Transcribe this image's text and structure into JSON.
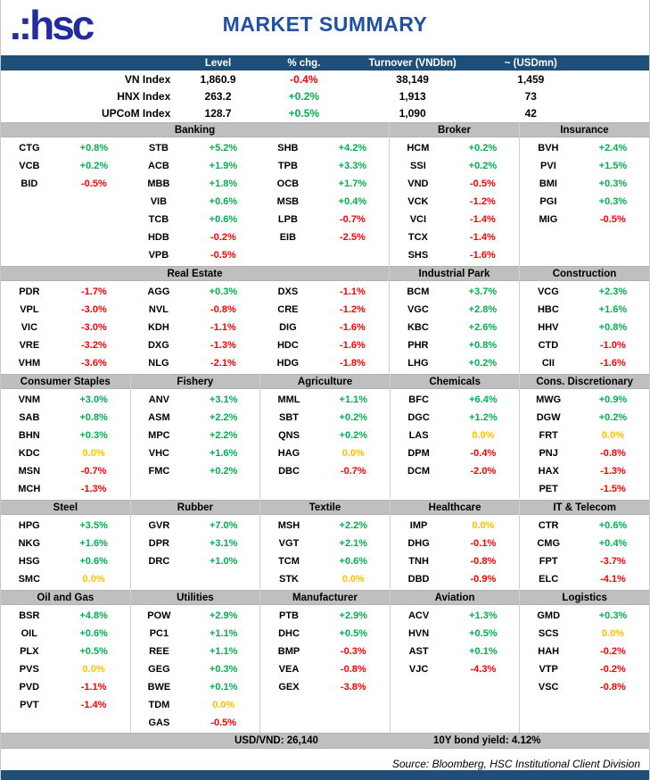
{
  "header": {
    "logo_text": ".:hsc",
    "title": "MARKET SUMMARY"
  },
  "index_table": {
    "columns": {
      "level": "Level",
      "chg": "% chg.",
      "turnover": "Turnover (VNDbn)",
      "usd": "~ (USDmn)"
    },
    "rows": [
      {
        "name": "VN Index",
        "level": "1,860.9",
        "chg": "-0.4%",
        "turnover": "38,149",
        "usd": "1,459"
      },
      {
        "name": "HNX Index",
        "level": "263.2",
        "chg": "+0.2%",
        "turnover": "1,913",
        "usd": "73"
      },
      {
        "name": "UPCoM Index",
        "level": "128.7",
        "chg": "+0.5%",
        "turnover": "1,090",
        "usd": "42"
      }
    ]
  },
  "section_rows": [
    {
      "sections": [
        {
          "title": "Banking",
          "span": 3,
          "columns": [
            [
              [
                "CTG",
                "+0.8%"
              ],
              [
                "VCB",
                "+0.2%"
              ],
              [
                "BID",
                "-0.5%"
              ]
            ],
            [
              [
                "STB",
                "+5.2%"
              ],
              [
                "ACB",
                "+1.9%"
              ],
              [
                "MBB",
                "+1.8%"
              ],
              [
                "VIB",
                "+0.6%"
              ],
              [
                "TCB",
                "+0.6%"
              ],
              [
                "HDB",
                "-0.2%"
              ],
              [
                "VPB",
                "-0.5%"
              ]
            ],
            [
              [
                "SHB",
                "+4.2%"
              ],
              [
                "TPB",
                "+3.3%"
              ],
              [
                "OCB",
                "+1.7%"
              ],
              [
                "MSB",
                "+0.4%"
              ],
              [
                "LPB",
                "-0.7%"
              ],
              [
                "EIB",
                "-2.5%"
              ]
            ]
          ]
        },
        {
          "title": "Broker",
          "span": 1,
          "columns": [
            [
              [
                "HCM",
                "+0.2%"
              ],
              [
                "SSI",
                "+0.2%"
              ],
              [
                "VND",
                "-0.5%"
              ],
              [
                "VCK",
                "-1.2%"
              ],
              [
                "VCI",
                "-1.4%"
              ],
              [
                "TCX",
                "-1.4%"
              ],
              [
                "SHS",
                "-1.6%"
              ]
            ]
          ]
        },
        {
          "title": "Insurance",
          "span": 1,
          "columns": [
            [
              [
                "BVH",
                "+2.4%"
              ],
              [
                "PVI",
                "+1.5%"
              ],
              [
                "BMI",
                "+0.3%"
              ],
              [
                "PGI",
                "+0.3%"
              ],
              [
                "MIG",
                "-0.5%"
              ]
            ]
          ]
        }
      ]
    },
    {
      "sections": [
        {
          "title": "Real Estate",
          "span": 3,
          "columns": [
            [
              [
                "PDR",
                "-1.7%"
              ],
              [
                "VPL",
                "-3.0%"
              ],
              [
                "VIC",
                "-3.0%"
              ],
              [
                "VRE",
                "-3.2%"
              ],
              [
                "VHM",
                "-3.6%"
              ]
            ],
            [
              [
                "AGG",
                "+0.3%"
              ],
              [
                "NVL",
                "-0.8%"
              ],
              [
                "KDH",
                "-1.1%"
              ],
              [
                "DXG",
                "-1.3%"
              ],
              [
                "NLG",
                "-2.1%"
              ]
            ],
            [
              [
                "DXS",
                "-1.1%"
              ],
              [
                "CRE",
                "-1.2%"
              ],
              [
                "DIG",
                "-1.6%"
              ],
              [
                "HDC",
                "-1.6%"
              ],
              [
                "HDG",
                "-1.8%"
              ]
            ]
          ]
        },
        {
          "title": "Industrial Park",
          "span": 1,
          "columns": [
            [
              [
                "BCM",
                "+3.7%"
              ],
              [
                "VGC",
                "+2.8%"
              ],
              [
                "KBC",
                "+2.6%"
              ],
              [
                "PHR",
                "+0.8%"
              ],
              [
                "LHG",
                "+0.2%"
              ]
            ]
          ]
        },
        {
          "title": "Construction",
          "span": 1,
          "columns": [
            [
              [
                "VCG",
                "+2.3%"
              ],
              [
                "HBC",
                "+1.6%"
              ],
              [
                "HHV",
                "+0.8%"
              ],
              [
                "CTD",
                "-1.0%"
              ],
              [
                "CII",
                "-1.6%"
              ]
            ]
          ]
        }
      ]
    },
    {
      "sections": [
        {
          "title": "Consumer Staples",
          "span": 1,
          "columns": [
            [
              [
                "VNM",
                "+3.0%"
              ],
              [
                "SAB",
                "+0.8%"
              ],
              [
                "BHN",
                "+0.3%"
              ],
              [
                "KDC",
                "0.0%"
              ],
              [
                "MSN",
                "-0.7%"
              ],
              [
                "MCH",
                "-1.3%"
              ]
            ]
          ]
        },
        {
          "title": "Fishery",
          "span": 1,
          "columns": [
            [
              [
                "ANV",
                "+3.1%"
              ],
              [
                "ASM",
                "+2.2%"
              ],
              [
                "MPC",
                "+2.2%"
              ],
              [
                "VHC",
                "+1.6%"
              ],
              [
                "FMC",
                "+0.2%"
              ]
            ]
          ]
        },
        {
          "title": "Agriculture",
          "span": 1,
          "columns": [
            [
              [
                "MML",
                "+1.1%"
              ],
              [
                "SBT",
                "+0.2%"
              ],
              [
                "QNS",
                "+0.2%"
              ],
              [
                "HAG",
                "0.0%"
              ],
              [
                "DBC",
                "-0.7%"
              ]
            ]
          ]
        },
        {
          "title": "Chemicals",
          "span": 1,
          "columns": [
            [
              [
                "BFC",
                "+6.4%"
              ],
              [
                "DGC",
                "+1.2%"
              ],
              [
                "LAS",
                "0.0%"
              ],
              [
                "DPM",
                "-0.4%"
              ],
              [
                "DCM",
                "-2.0%"
              ]
            ]
          ]
        },
        {
          "title": "Cons. Discretionary",
          "span": 1,
          "columns": [
            [
              [
                "MWG",
                "+0.9%"
              ],
              [
                "DGW",
                "+0.2%"
              ],
              [
                "FRT",
                "0.0%"
              ],
              [
                "PNJ",
                "-0.8%"
              ],
              [
                "HAX",
                "-1.3%"
              ],
              [
                "PET",
                "-1.5%"
              ]
            ]
          ]
        }
      ]
    },
    {
      "sections": [
        {
          "title": "Steel",
          "span": 1,
          "columns": [
            [
              [
                "HPG",
                "+3.5%"
              ],
              [
                "NKG",
                "+1.6%"
              ],
              [
                "HSG",
                "+0.6%"
              ],
              [
                "SMC",
                "0.0%"
              ]
            ]
          ]
        },
        {
          "title": "Rubber",
          "span": 1,
          "columns": [
            [
              [
                "GVR",
                "+7.0%"
              ],
              [
                "DPR",
                "+3.1%"
              ],
              [
                "DRC",
                "+1.0%"
              ]
            ]
          ]
        },
        {
          "title": "Textile",
          "span": 1,
          "columns": [
            [
              [
                "MSH",
                "+2.2%"
              ],
              [
                "VGT",
                "+2.1%"
              ],
              [
                "TCM",
                "+0.6%"
              ],
              [
                "STK",
                "0.0%"
              ]
            ]
          ]
        },
        {
          "title": "Healthcare",
          "span": 1,
          "columns": [
            [
              [
                "IMP",
                "0.0%"
              ],
              [
                "DHG",
                "-0.1%"
              ],
              [
                "TNH",
                "-0.8%"
              ],
              [
                "DBD",
                "-0.9%"
              ]
            ]
          ]
        },
        {
          "title": "IT & Telecom",
          "span": 1,
          "columns": [
            [
              [
                "CTR",
                "+0.6%"
              ],
              [
                "CMG",
                "+0.4%"
              ],
              [
                "FPT",
                "-3.7%"
              ],
              [
                "ELC",
                "-4.1%"
              ]
            ]
          ]
        }
      ]
    },
    {
      "sections": [
        {
          "title": "Oil and Gas",
          "span": 1,
          "columns": [
            [
              [
                "BSR",
                "+4.8%"
              ],
              [
                "OIL",
                "+0.6%"
              ],
              [
                "PLX",
                "+0.5%"
              ],
              [
                "PVS",
                "0.0%"
              ],
              [
                "PVD",
                "-1.1%"
              ],
              [
                "PVT",
                "-1.4%"
              ]
            ]
          ]
        },
        {
          "title": "Utilities",
          "span": 1,
          "columns": [
            [
              [
                "POW",
                "+2.9%"
              ],
              [
                "PC1",
                "+1.1%"
              ],
              [
                "REE",
                "+1.1%"
              ],
              [
                "GEG",
                "+0.3%"
              ],
              [
                "BWE",
                "+0.1%"
              ],
              [
                "TDM",
                "0.0%"
              ],
              [
                "GAS",
                "-0.5%"
              ]
            ]
          ]
        },
        {
          "title": "Manufacturer",
          "span": 1,
          "columns": [
            [
              [
                "PTB",
                "+2.9%"
              ],
              [
                "DHC",
                "+0.5%"
              ],
              [
                "BMP",
                "-0.3%"
              ],
              [
                "VEA",
                "-0.8%"
              ],
              [
                "GEX",
                "-3.8%"
              ]
            ]
          ]
        },
        {
          "title": "Aviation",
          "span": 1,
          "columns": [
            [
              [
                "ACV",
                "+1.3%"
              ],
              [
                "HVN",
                "+0.5%"
              ],
              [
                "AST",
                "+0.1%"
              ],
              [
                "VJC",
                "-4.3%"
              ]
            ]
          ]
        },
        {
          "title": "Logistics",
          "span": 1,
          "columns": [
            [
              [
                "GMD",
                "+0.3%"
              ],
              [
                "SCS",
                "0.0%"
              ],
              [
                "HAH",
                "-0.2%"
              ],
              [
                "VTP",
                "-0.2%"
              ],
              [
                "VSC",
                "-0.8%"
              ]
            ]
          ]
        }
      ]
    }
  ],
  "footer": {
    "usdvnd": "USD/VND: 26,140",
    "bond_yield": "10Y bond yield: 4.12%",
    "source": "Source: Bloomberg, HSC Institutional Client Division"
  },
  "colors": {
    "up": "#00B050",
    "down": "#FF0000",
    "flat": "#FFC000",
    "navy": "#1F4E79",
    "brand_blue": "#232C9E",
    "title_blue": "#2150A5",
    "header_gray": "#BFBFBF"
  }
}
